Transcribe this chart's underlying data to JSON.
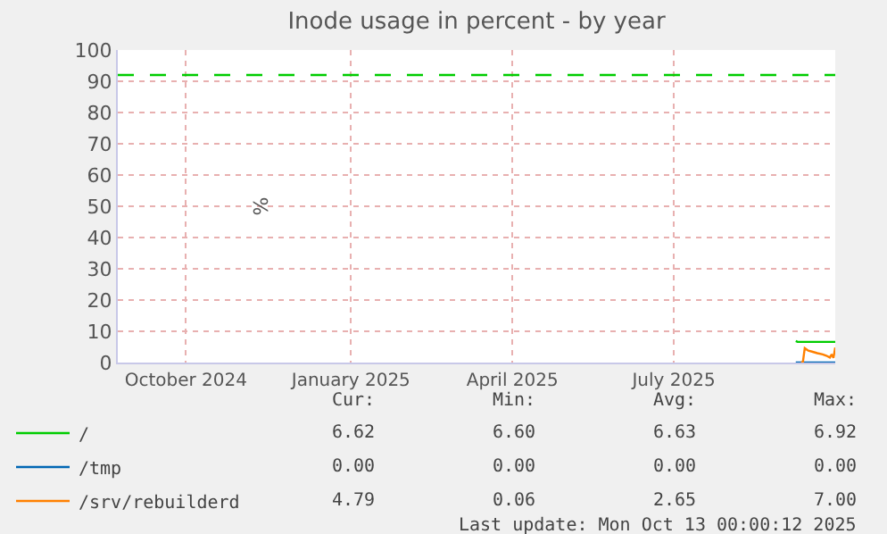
{
  "chart_data": {
    "type": "line",
    "title": "Inode usage in percent - by year",
    "ylabel": "%",
    "xlim": [
      "2024-09-08",
      "2025-10-13"
    ],
    "xticks": [
      {
        "value": "2024-10-16",
        "label": "October 2024"
      },
      {
        "value": "2025-01-16",
        "label": "January 2025"
      },
      {
        "value": "2025-04-16",
        "label": "April 2025"
      },
      {
        "value": "2025-07-15",
        "label": "July 2025"
      }
    ],
    "ylim": [
      0,
      100
    ],
    "yticks": [
      0,
      10,
      20,
      30,
      40,
      50,
      60,
      70,
      80,
      90,
      100
    ],
    "grid": true,
    "legend": "bottom",
    "line_style": "solid",
    "marker": "none",
    "ref_lines": [
      {
        "axis": "y",
        "value": 92,
        "color": "#00cc00",
        "line_style": "dashed"
      }
    ],
    "series": [
      {
        "name": "/",
        "color": "#00cc00",
        "x": [
          "2025-09-21",
          "2025-09-22",
          "2025-10-13"
        ],
        "values": [
          6.9,
          6.6,
          6.6
        ]
      },
      {
        "name": "/tmp",
        "color": "#0066b3",
        "x": [
          "2025-09-21",
          "2025-10-13"
        ],
        "values": [
          0,
          0
        ]
      },
      {
        "name": "/srv/rebuilderd",
        "color": "#ff8000",
        "x": [
          "2025-09-24",
          "2025-09-25",
          "2025-09-26",
          "2025-09-28",
          "2025-09-30",
          "2025-10-03",
          "2025-10-06",
          "2025-10-08",
          "2025-10-10",
          "2025-10-11",
          "2025-10-12",
          "2025-10-13"
        ],
        "values": [
          0.1,
          0.3,
          4.6,
          3.8,
          3.5,
          3.0,
          2.6,
          2.2,
          1.6,
          2.6,
          1.5,
          4.8
        ]
      }
    ],
    "annotations": [
      "Cur:",
      "Min:",
      "Avg:",
      "Max:",
      "6.62",
      "6.60",
      "6.63",
      "6.92",
      "0.00",
      "0.00",
      "0.00",
      "0.00",
      "4.79",
      "0.06",
      "2.65",
      "7.00",
      "Last update: Mon Oct 13 00:00:12 2025"
    ]
  }
}
